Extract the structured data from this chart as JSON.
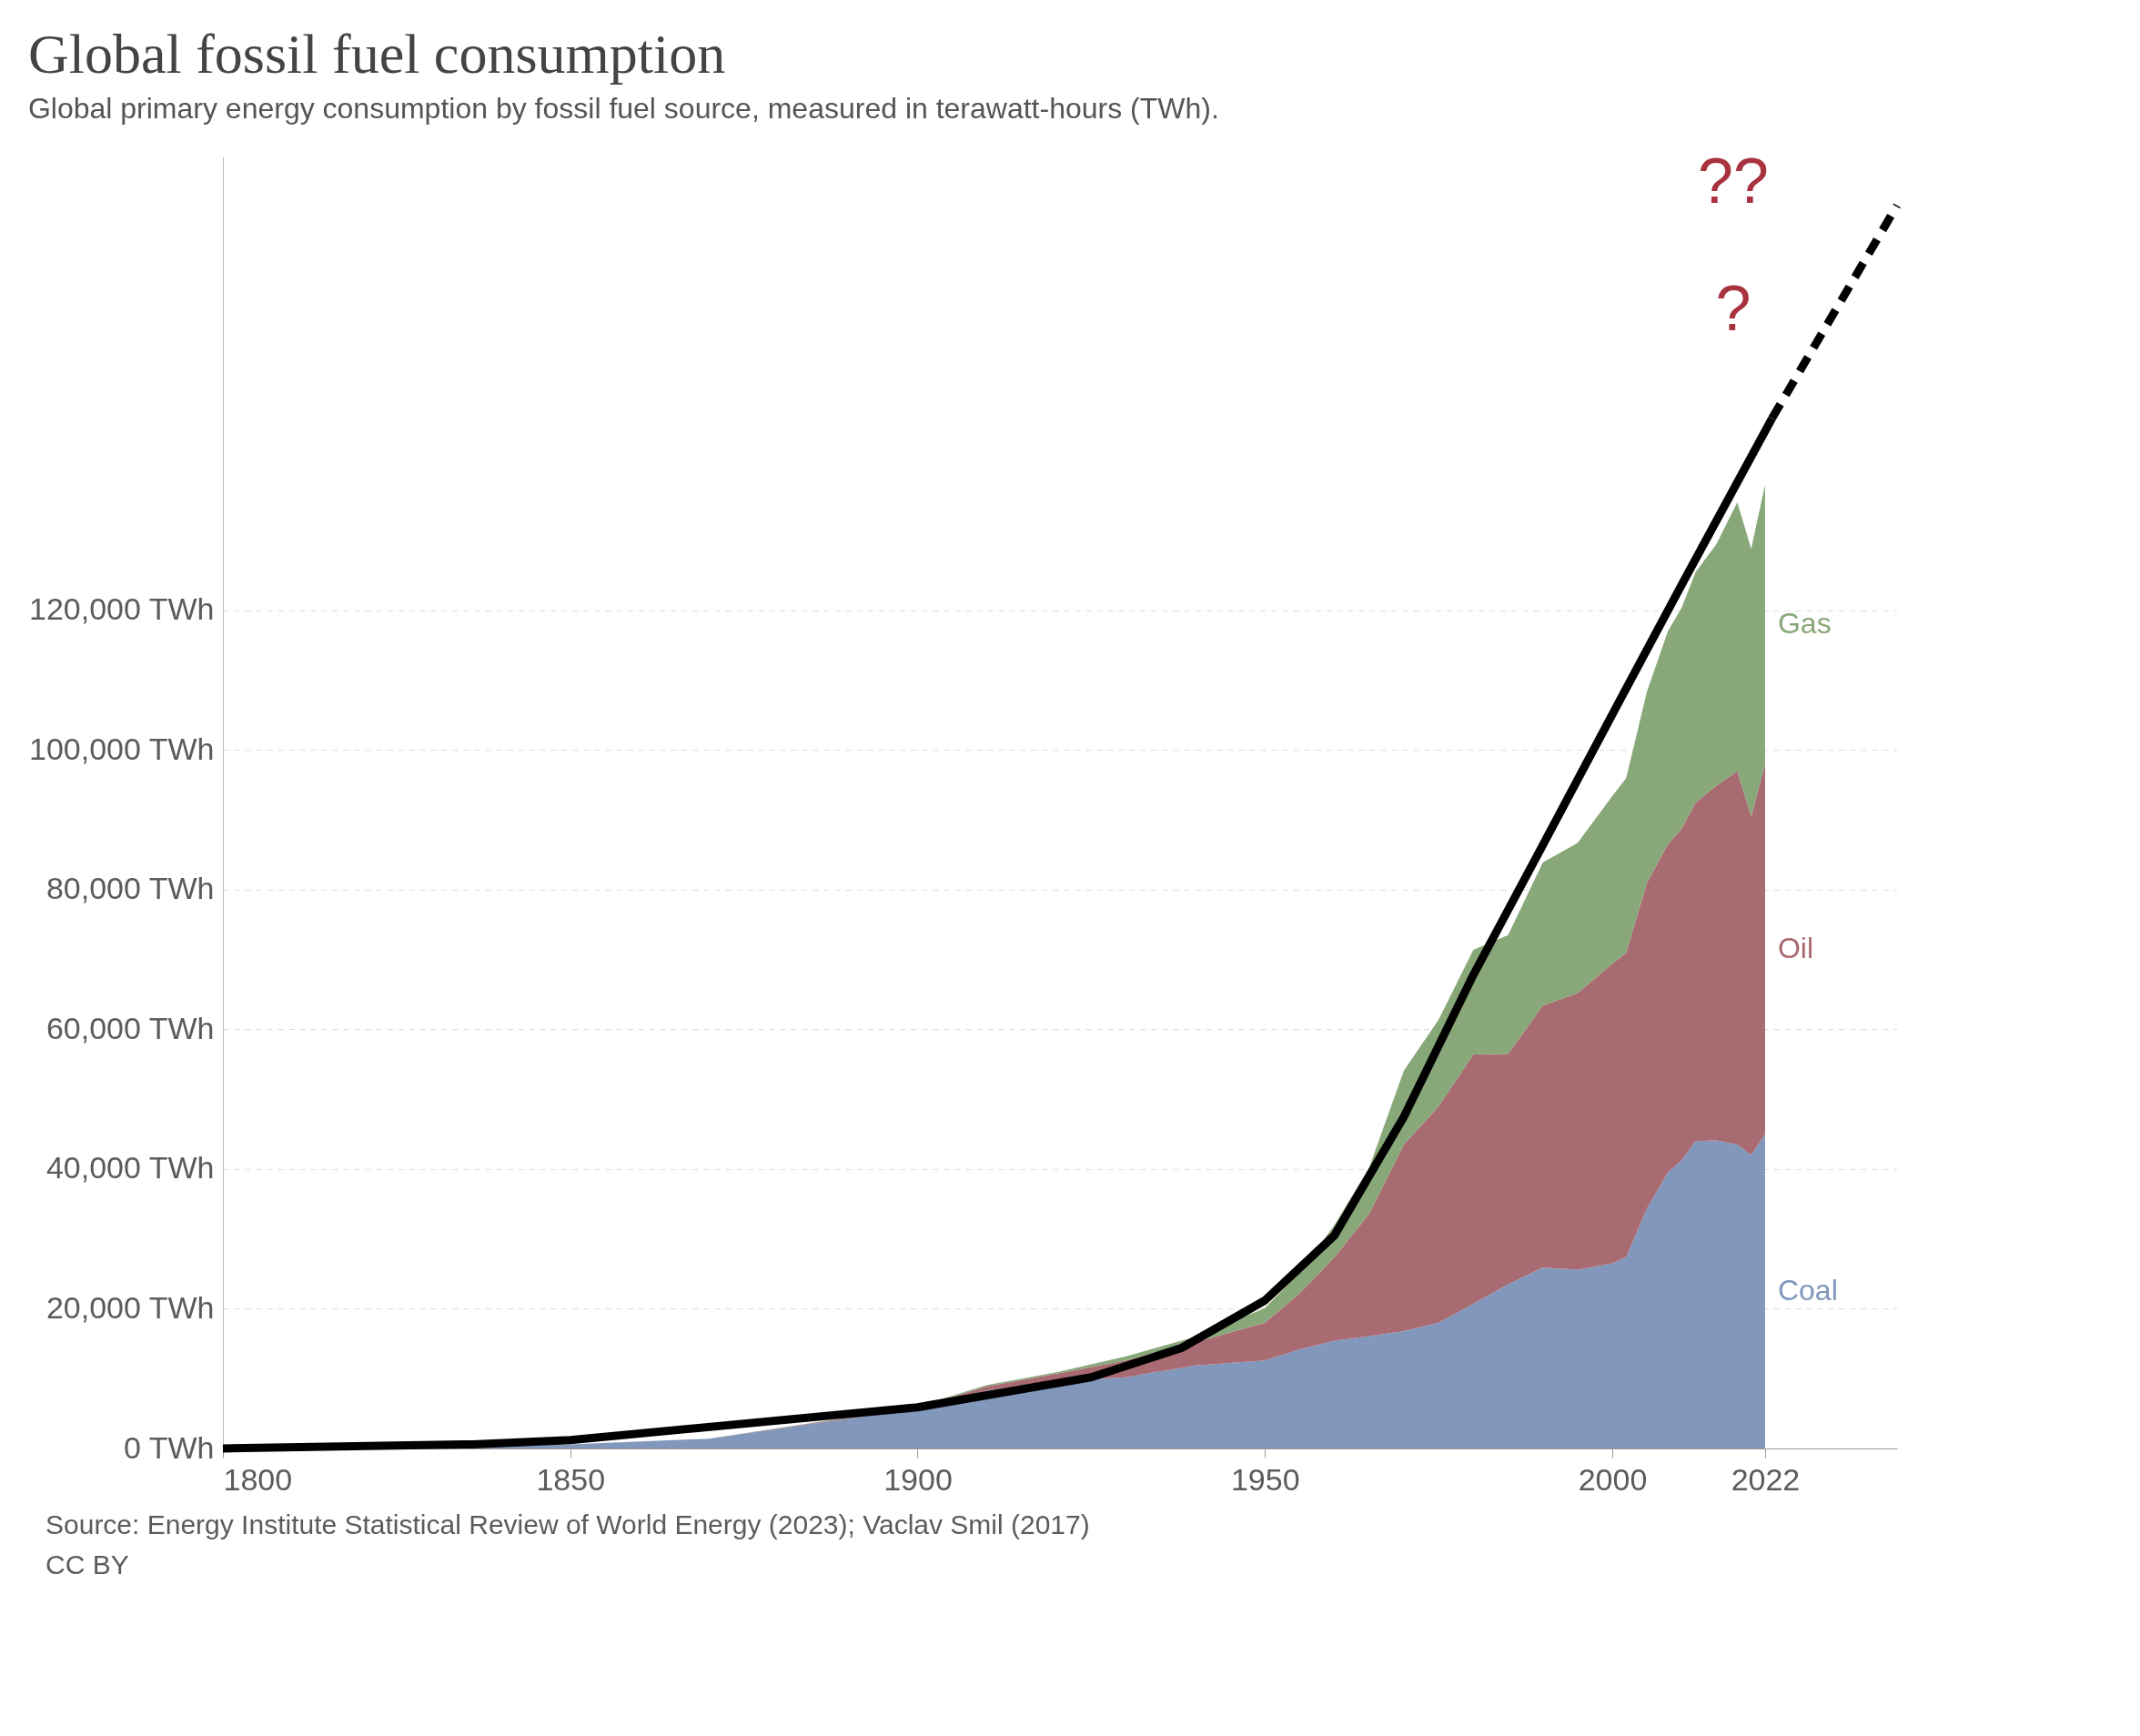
{
  "chart_data": {
    "type": "area",
    "title": "Global fossil fuel consumption",
    "subtitle": "Global primary energy consumption by fossil fuel source, measured in terawatt-hours (TWh).",
    "x": [
      1800,
      1850,
      1870,
      1900,
      1910,
      1920,
      1930,
      1940,
      1950,
      1955,
      1960,
      1965,
      1970,
      1975,
      1980,
      1985,
      1990,
      1995,
      2000,
      2002,
      2005,
      2008,
      2010,
      2012,
      2015,
      2018,
      2020,
      2022
    ],
    "stacked": true,
    "series": [
      {
        "name": "Coal",
        "color": "#8197bb",
        "values": [
          100,
          600,
          1400,
          5700,
          8300,
          9600,
          10200,
          11900,
          12600,
          14200,
          15400,
          16100,
          16800,
          18000,
          20700,
          23500,
          25900,
          25600,
          26500,
          27400,
          34400,
          39500,
          41300,
          44000,
          44100,
          43500,
          42000,
          45000
        ]
      },
      {
        "name": "Oil",
        "color": "#a96b72",
        "values": [
          0,
          0,
          0,
          200,
          600,
          1100,
          2400,
          3300,
          5400,
          8000,
          12000,
          17500,
          26700,
          31000,
          35700,
          33000,
          37500,
          39600,
          42900,
          43600,
          46600,
          47000,
          47500,
          48500,
          50800,
          53500,
          48500,
          53000
        ]
      },
      {
        "name": "Gas",
        "color": "#88a87a",
        "values": [
          0,
          0,
          0,
          100,
          200,
          200,
          600,
          800,
          2100,
          3000,
          4600,
          6600,
          10600,
          12400,
          15000,
          17000,
          20500,
          21500,
          24000,
          25000,
          27400,
          30500,
          31600,
          33000,
          34600,
          38500,
          38300,
          40000
        ]
      },
      {
        "type": "line",
        "color": "#000000",
        "line_style": "solid",
        "x": [
          1800,
          1836,
          1850,
          1900,
          1925,
          1938,
          1950,
          1960,
          1970,
          1980,
          1990,
          2000,
          2010,
          2023
        ],
        "values": [
          0,
          600,
          1200,
          5900,
          10200,
          14400,
          21200,
          30500,
          47500,
          67800,
          86400,
          105100,
          123700,
          147500
        ]
      },
      {
        "type": "line",
        "color": "#000000",
        "line_style": "dashed",
        "x": [
          2023,
          2041
        ],
        "values": [
          147500,
          178000
        ]
      }
    ],
    "xlim": [
      1800,
      2041
    ],
    "xticks": [
      1800,
      1850,
      1900,
      1950,
      2000,
      2022
    ],
    "ylim": [
      0,
      185000
    ],
    "yticks": [
      {
        "value": 0,
        "label": "0 TWh"
      },
      {
        "value": 20000,
        "label": "20,000 TWh"
      },
      {
        "value": 40000,
        "label": "40,000 TWh"
      },
      {
        "value": 60000,
        "label": "60,000 TWh"
      },
      {
        "value": 80000,
        "label": "80,000 TWh"
      },
      {
        "value": 100000,
        "label": "100,000 TWh"
      },
      {
        "value": 120000,
        "label": "120,000 TWh"
      }
    ],
    "grid": "y",
    "legend": false,
    "annotations": [
      "??",
      "?",
      "Source: Energy Institute Statistical Review of World Energy (2023); Vaclav Smil (2017)",
      "CC BY"
    ]
  }
}
